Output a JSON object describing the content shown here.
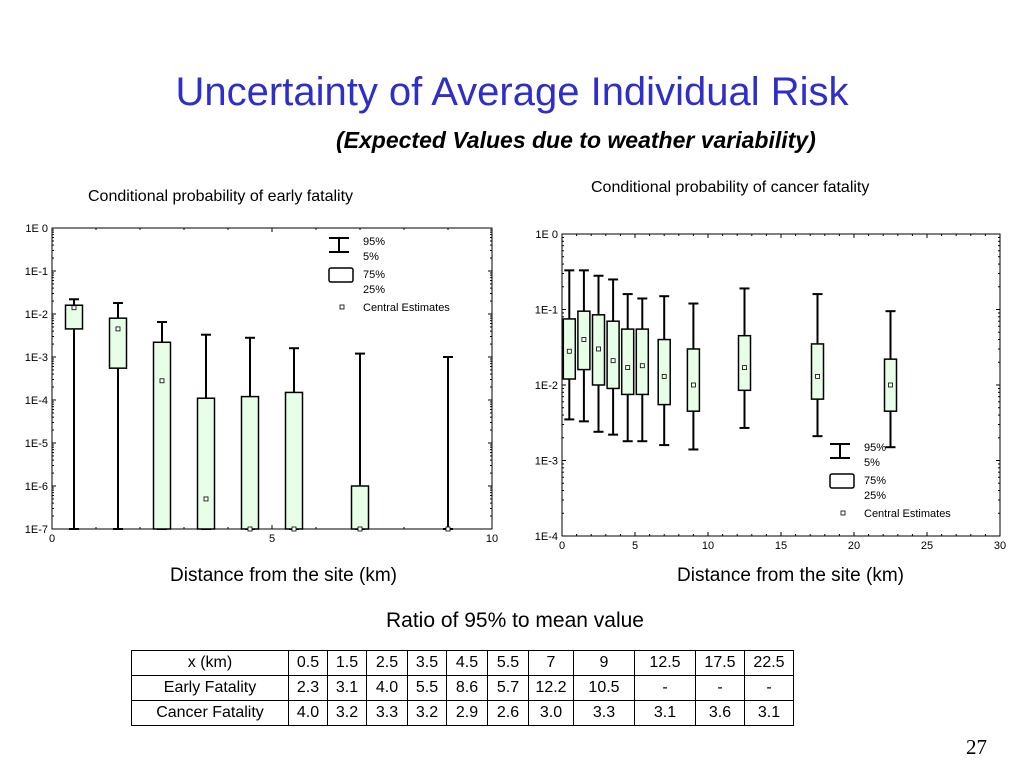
{
  "slide": {
    "title": "Uncertainty of Average Individual Risk",
    "subtitle": "(Expected Values due to weather variability)",
    "page_number": "27"
  },
  "chart_data": [
    {
      "type": "box",
      "title": "Conditional probability of early fatality",
      "xlabel": "Distance from the site (km)",
      "ylabel": "",
      "yscale": "log",
      "xlim": [
        0,
        10
      ],
      "ylim": [
        1e-07,
        1
      ],
      "x_ticks": [
        "0",
        "5",
        "10"
      ],
      "y_ticks": [
        "1E  0",
        "1E-1",
        "1E-2",
        "1E-3",
        "1E-4",
        "1E-5",
        "1E-6",
        "1E-7"
      ],
      "legend": {
        "position": "top-right",
        "items": [
          "95%",
          "5%",
          "75%",
          "25%",
          "Central Estimates"
        ]
      },
      "box_color": "#e6ffe6",
      "boxes": [
        {
          "x": 0.5,
          "p5": 1e-07,
          "p25": 0.0045,
          "central": 0.014,
          "p75": 0.016,
          "p95": 0.022
        },
        {
          "x": 1.5,
          "p5": 1e-07,
          "p25": 0.00055,
          "central": 0.0045,
          "p75": 0.008,
          "p95": 0.018
        },
        {
          "x": 2.5,
          "p5": 1e-07,
          "p25": 1e-07,
          "central": 0.00028,
          "p75": 0.0022,
          "p95": 0.0065
        },
        {
          "x": 3.5,
          "p5": 1e-07,
          "p25": 1e-07,
          "central": 5e-07,
          "p75": 0.00011,
          "p95": 0.0033
        },
        {
          "x": 4.5,
          "p5": 1e-07,
          "p25": 1e-07,
          "central": 1e-07,
          "p75": 0.00012,
          "p95": 0.0028
        },
        {
          "x": 5.5,
          "p5": 1e-07,
          "p25": 1e-07,
          "central": 1e-07,
          "p75": 0.00015,
          "p95": 0.0016
        },
        {
          "x": 7,
          "p5": 1e-07,
          "p25": 1e-07,
          "central": 1e-07,
          "p75": 1e-06,
          "p95": 0.0012
        },
        {
          "x": 9,
          "p5": 1e-07,
          "p25": 1e-07,
          "central": 1e-07,
          "p75": 1e-07,
          "p95": 0.001
        }
      ]
    },
    {
      "type": "box",
      "title": "Conditional probability of cancer fatality",
      "xlabel": "Distance from the site (km)",
      "ylabel": "",
      "yscale": "log",
      "xlim": [
        0,
        30
      ],
      "ylim": [
        0.0001,
        1
      ],
      "x_ticks": [
        "0",
        "5",
        "10",
        "15",
        "20",
        "25",
        "30"
      ],
      "y_ticks": [
        "1E  0",
        "1E-1",
        "1E-2",
        "1E-3",
        "1E-4"
      ],
      "legend": {
        "position": "bottom-right",
        "items": [
          "95%",
          "5%",
          "75%",
          "25%",
          "Central Estimates"
        ]
      },
      "box_color": "#e6ffe6",
      "boxes": [
        {
          "x": 0.5,
          "p5": 0.0035,
          "p25": 0.012,
          "central": 0.028,
          "p75": 0.075,
          "p95": 0.33
        },
        {
          "x": 1.5,
          "p5": 0.0033,
          "p25": 0.016,
          "central": 0.04,
          "p75": 0.095,
          "p95": 0.33
        },
        {
          "x": 2.5,
          "p5": 0.0024,
          "p25": 0.01,
          "central": 0.03,
          "p75": 0.085,
          "p95": 0.28
        },
        {
          "x": 3.5,
          "p5": 0.0022,
          "p25": 0.009,
          "central": 0.021,
          "p75": 0.07,
          "p95": 0.25
        },
        {
          "x": 4.5,
          "p5": 0.0018,
          "p25": 0.0075,
          "central": 0.017,
          "p75": 0.055,
          "p95": 0.16
        },
        {
          "x": 5.5,
          "p5": 0.0018,
          "p25": 0.0075,
          "central": 0.018,
          "p75": 0.055,
          "p95": 0.14
        },
        {
          "x": 7,
          "p5": 0.0016,
          "p25": 0.0055,
          "central": 0.013,
          "p75": 0.04,
          "p95": 0.15
        },
        {
          "x": 9,
          "p5": 0.0014,
          "p25": 0.0045,
          "central": 0.01,
          "p75": 0.03,
          "p95": 0.12
        },
        {
          "x": 12.5,
          "p5": 0.0027,
          "p25": 0.0085,
          "central": 0.017,
          "p75": 0.045,
          "p95": 0.19
        },
        {
          "x": 17.5,
          "p5": 0.0021,
          "p25": 0.0065,
          "central": 0.013,
          "p75": 0.035,
          "p95": 0.16
        },
        {
          "x": 22.5,
          "p5": 0.0015,
          "p25": 0.0045,
          "central": 0.01,
          "p75": 0.022,
          "p95": 0.095
        }
      ]
    }
  ],
  "ratio_table": {
    "title": "Ratio of 95% to mean value",
    "header": [
      "x (km)",
      "0.5",
      "1.5",
      "2.5",
      "3.5",
      "4.5",
      "5.5",
      "7",
      "9",
      "12.5",
      "17.5",
      "22.5"
    ],
    "rows": [
      [
        "Early Fatality",
        "2.3",
        "3.1",
        "4.0",
        "5.5",
        "8.6",
        "5.7",
        "12.2",
        "10.5",
        "-",
        "-",
        "-"
      ],
      [
        "Cancer Fatality",
        "4.0",
        "3.2",
        "3.3",
        "3.2",
        "2.9",
        "2.6",
        "3.0",
        "3.3",
        "3.1",
        "3.6",
        "3.1"
      ]
    ]
  }
}
